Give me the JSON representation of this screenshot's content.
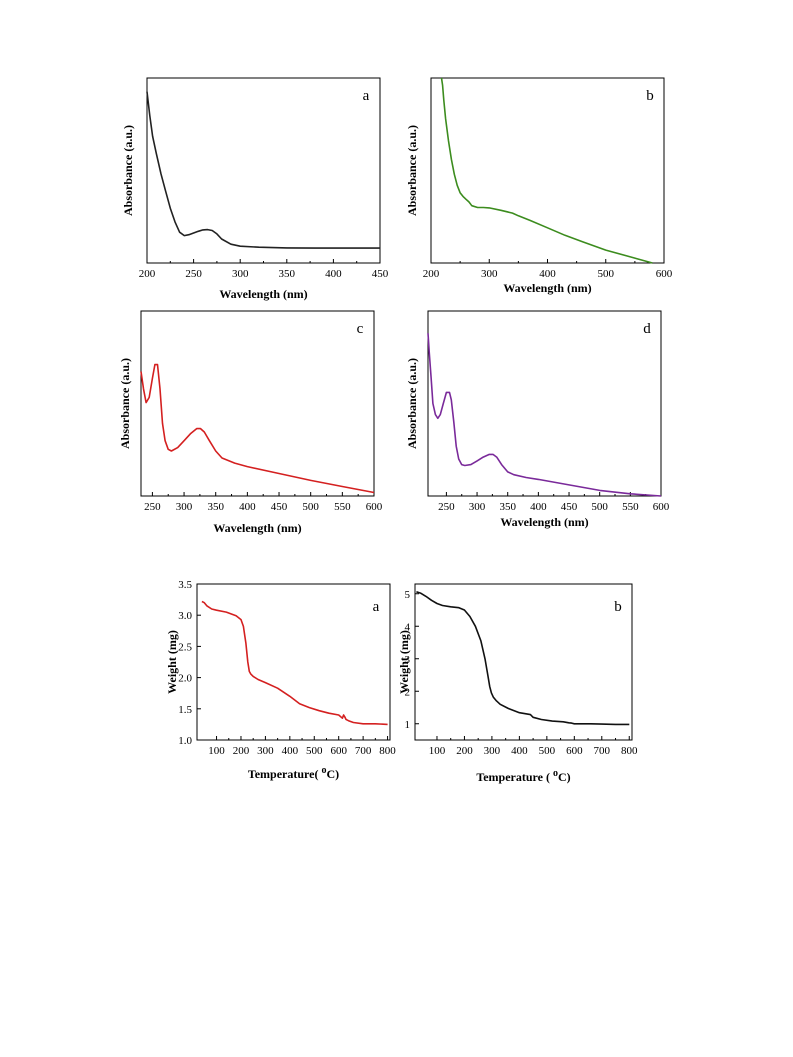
{
  "chart_data": [
    {
      "type": "line",
      "panel_label": "a",
      "xlabel": "Wavelength (nm)",
      "ylabel": "Absorbance (a.u.)",
      "xlim": [
        200,
        450
      ],
      "x_ticks": [
        200,
        250,
        300,
        350,
        400,
        450
      ],
      "y_ticks": [],
      "grid": false,
      "series": [
        {
          "color": "#222222",
          "x": [
            200,
            203,
            206,
            210,
            215,
            220,
            225,
            230,
            235,
            240,
            245,
            250,
            255,
            260,
            265,
            270,
            275,
            280,
            290,
            300,
            320,
            350,
            380,
            400,
            420,
            450
          ],
          "y": [
            1.0,
            0.86,
            0.74,
            0.64,
            0.52,
            0.42,
            0.32,
            0.24,
            0.18,
            0.16,
            0.165,
            0.175,
            0.185,
            0.193,
            0.195,
            0.19,
            0.17,
            0.14,
            0.11,
            0.098,
            0.092,
            0.088,
            0.087,
            0.087,
            0.087,
            0.087
          ]
        }
      ]
    },
    {
      "type": "line",
      "panel_label": "b",
      "xlabel": "Wavelength (nm)",
      "ylabel": "Absorbance (a.u.)",
      "xlim": [
        200,
        600
      ],
      "x_ticks": [
        200,
        300,
        400,
        500,
        600
      ],
      "y_ticks": [],
      "grid": false,
      "series": [
        {
          "color": "#3c8c1e",
          "x": [
            218,
            220,
            222,
            225,
            230,
            235,
            240,
            245,
            250,
            255,
            260,
            265,
            270,
            280,
            290,
            300,
            320,
            340,
            350,
            370,
            400,
            430,
            460,
            500,
            540,
            580
          ],
          "y": [
            1.0,
            0.96,
            0.88,
            0.78,
            0.66,
            0.56,
            0.48,
            0.42,
            0.38,
            0.36,
            0.345,
            0.33,
            0.31,
            0.3,
            0.3,
            0.298,
            0.285,
            0.27,
            0.255,
            0.23,
            0.19,
            0.15,
            0.115,
            0.07,
            0.035,
            0.0
          ]
        }
      ]
    },
    {
      "type": "line",
      "panel_label": "c",
      "xlabel": "Wavelength (nm)",
      "ylabel": "Absorbance (a.u.)",
      "xlim": [
        232,
        600
      ],
      "x_ticks": [
        250,
        300,
        350,
        400,
        450,
        500,
        550,
        600
      ],
      "y_ticks": [],
      "grid": false,
      "series": [
        {
          "color": "#d42020",
          "x": [
            232,
            236,
            240,
            245,
            250,
            254,
            258,
            262,
            266,
            270,
            275,
            280,
            290,
            300,
            310,
            320,
            326,
            332,
            340,
            350,
            360,
            380,
            400,
            450,
            500,
            550,
            600
          ],
          "y": [
            0.7,
            0.6,
            0.52,
            0.55,
            0.66,
            0.74,
            0.74,
            0.6,
            0.4,
            0.3,
            0.25,
            0.24,
            0.26,
            0.3,
            0.34,
            0.37,
            0.37,
            0.35,
            0.3,
            0.24,
            0.2,
            0.17,
            0.15,
            0.11,
            0.07,
            0.035,
            0.0
          ]
        }
      ]
    },
    {
      "type": "line",
      "panel_label": "d",
      "xlabel": "Wavelength (nm)",
      "ylabel": "Absorbance (a.u.)",
      "xlim": [
        220,
        600
      ],
      "x_ticks": [
        250,
        300,
        350,
        400,
        450,
        500,
        550,
        600
      ],
      "y_ticks": [],
      "grid": false,
      "series": [
        {
          "color": "#7a2a9a",
          "x": [
            220,
            222,
            225,
            228,
            232,
            236,
            240,
            245,
            250,
            255,
            258,
            262,
            266,
            270,
            275,
            280,
            290,
            300,
            310,
            320,
            326,
            332,
            340,
            350,
            360,
            380,
            400,
            450,
            500,
            550,
            600
          ],
          "y": [
            0.88,
            0.78,
            0.64,
            0.5,
            0.44,
            0.42,
            0.44,
            0.5,
            0.56,
            0.56,
            0.52,
            0.4,
            0.27,
            0.2,
            0.17,
            0.165,
            0.17,
            0.19,
            0.21,
            0.225,
            0.225,
            0.21,
            0.17,
            0.13,
            0.115,
            0.1,
            0.09,
            0.06,
            0.03,
            0.012,
            0.0
          ]
        }
      ]
    },
    {
      "type": "line",
      "panel_label": "a",
      "xlabel": "Temperature( ",
      "xlabel_sup": "o",
      "xlabel_end": "C)",
      "ylabel": "Weight (mg)",
      "xlim": [
        20,
        810
      ],
      "ylim": [
        1.0,
        3.5
      ],
      "x_ticks": [
        100,
        200,
        300,
        400,
        500,
        600,
        700,
        800
      ],
      "y_ticks": [
        1.0,
        1.5,
        2.0,
        2.5,
        3.0,
        3.5
      ],
      "y_tick_labels": [
        "1.0",
        "1.5",
        "2.0",
        "2.5",
        "3.0",
        "3.5"
      ],
      "grid": false,
      "series": [
        {
          "color": "#d42020",
          "x": [
            40,
            50,
            60,
            80,
            100,
            140,
            180,
            200,
            210,
            220,
            228,
            234,
            240,
            250,
            270,
            300,
            350,
            400,
            440,
            480,
            520,
            560,
            600,
            615,
            620,
            625,
            630,
            640,
            660,
            700,
            750,
            800
          ],
          "y": [
            3.22,
            3.2,
            3.15,
            3.1,
            3.08,
            3.05,
            2.99,
            2.93,
            2.82,
            2.55,
            2.25,
            2.1,
            2.06,
            2.02,
            1.97,
            1.92,
            1.83,
            1.7,
            1.58,
            1.52,
            1.47,
            1.43,
            1.4,
            1.35,
            1.4,
            1.37,
            1.33,
            1.31,
            1.28,
            1.26,
            1.26,
            1.25
          ]
        }
      ]
    },
    {
      "type": "line",
      "panel_label": "b",
      "xlabel": "Temperature ( ",
      "xlabel_sup": "o",
      "xlabel_end": "C)",
      "ylabel": "Weight (mg)",
      "xlim": [
        20,
        810
      ],
      "ylim": [
        0.5,
        5.3
      ],
      "x_ticks": [
        100,
        200,
        300,
        400,
        500,
        600,
        700,
        800
      ],
      "y_ticks": [
        1,
        2,
        3,
        4,
        5
      ],
      "y_tick_labels": [
        "1",
        "2",
        "3",
        "4",
        "5"
      ],
      "grid": false,
      "series": [
        {
          "color": "#111111",
          "x": [
            25,
            40,
            60,
            80,
            100,
            120,
            150,
            180,
            200,
            220,
            240,
            260,
            275,
            285,
            292,
            298,
            305,
            315,
            330,
            360,
            400,
            440,
            450,
            480,
            520,
            560,
            580,
            590,
            600,
            620,
            660,
            700,
            750,
            800
          ],
          "y": [
            5.06,
            5.02,
            4.92,
            4.8,
            4.7,
            4.64,
            4.6,
            4.57,
            4.5,
            4.3,
            4.0,
            3.55,
            3.0,
            2.5,
            2.15,
            1.95,
            1.82,
            1.72,
            1.6,
            1.47,
            1.34,
            1.28,
            1.2,
            1.13,
            1.08,
            1.06,
            1.03,
            1.02,
            1.0,
            1.0,
            1.0,
            0.99,
            0.98,
            0.98
          ]
        }
      ]
    }
  ]
}
